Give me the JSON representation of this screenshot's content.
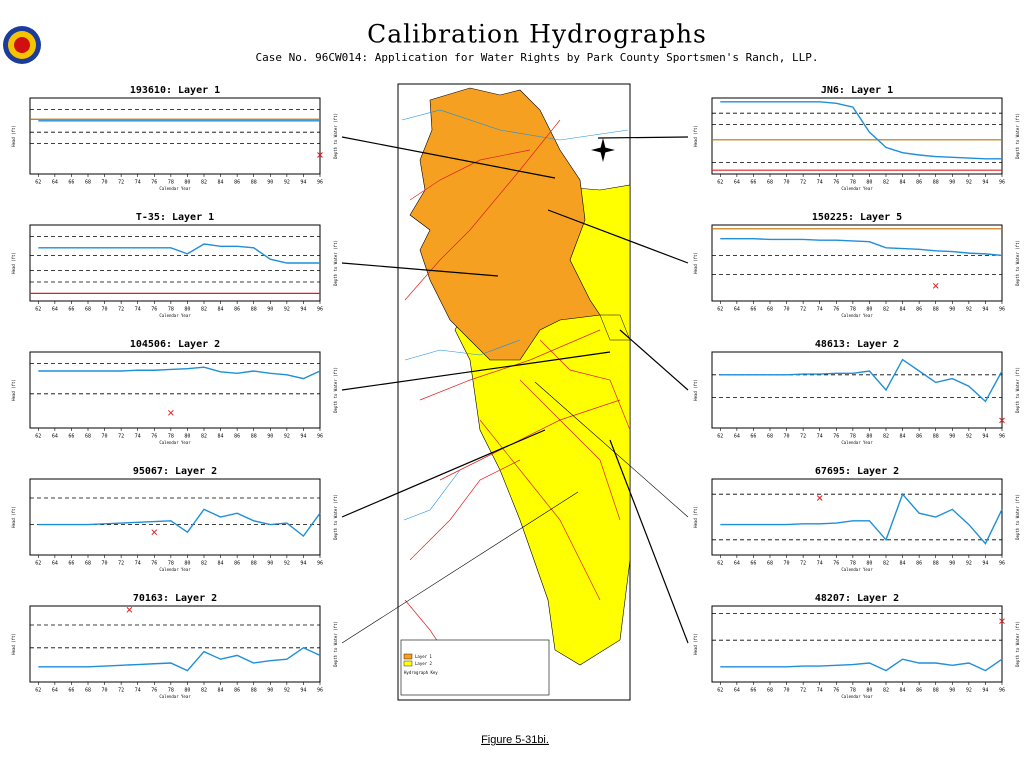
{
  "header": {
    "title": "Calibration Hydrographs",
    "subtitle": "Case No. 96CW014: Application for Water Rights by Park County Sportsmen's Ranch, LLP."
  },
  "figure_caption": "Figure 5-31bi.",
  "map_legend": {
    "layer1": "Layer 1",
    "layer2": "Layer 2",
    "key": "Hydrograph Key"
  },
  "chart_data": [
    {
      "type": "line",
      "title": "193610: Layer 1",
      "xlabel": "Calendar Year",
      "ylabel": "Head (ft)",
      "y2label": "Depth to Water (ft)",
      "x": [
        62,
        64,
        66,
        68,
        70,
        72,
        74,
        76,
        78,
        80,
        82,
        84,
        86,
        88,
        90,
        92,
        94,
        96
      ],
      "color": "#1f8fd8",
      "values": [
        70,
        70,
        70,
        70,
        70,
        70,
        70,
        70,
        70,
        70,
        70,
        70,
        70,
        70,
        70,
        70,
        70,
        70
      ],
      "measurements": {
        "x": [
          96
        ],
        "y": [
          25
        ],
        "color": "#e02020"
      },
      "ref_lines": [
        85,
        55,
        40
      ],
      "colored_refs": [
        {
          "value": 72,
          "color": "#c07000"
        }
      ],
      "xlim": [
        61,
        96
      ],
      "ylim": [
        0,
        100
      ],
      "xticks": [
        62,
        64,
        66,
        68,
        70,
        72,
        74,
        76,
        78,
        80,
        82,
        84,
        86,
        88,
        90,
        92,
        94,
        96
      ]
    },
    {
      "type": "line",
      "title": "T-35: Layer 1",
      "xlabel": "Calendar Year",
      "ylabel": "Head (ft)",
      "y2label": "Depth to Water (ft)",
      "x": [
        62,
        64,
        66,
        68,
        70,
        72,
        74,
        76,
        78,
        80,
        82,
        84,
        86,
        88,
        90,
        92,
        94,
        96
      ],
      "color": "#1f8fd8",
      "values": [
        70,
        70,
        70,
        70,
        70,
        70,
        70,
        70,
        70,
        62,
        75,
        72,
        72,
        70,
        55,
        50,
        50,
        50
      ],
      "measurements": {
        "x": [],
        "y": [],
        "color": "#e02020"
      },
      "ref_lines": [
        85,
        60,
        40,
        25
      ],
      "colored_refs": [
        {
          "value": 10,
          "color": "#e02020"
        }
      ],
      "xlim": [
        61,
        96
      ],
      "ylim": [
        0,
        100
      ],
      "xticks": [
        62,
        64,
        66,
        68,
        70,
        72,
        74,
        76,
        78,
        80,
        82,
        84,
        86,
        88,
        90,
        92,
        94,
        96
      ]
    },
    {
      "type": "line",
      "title": "104506: Layer 2",
      "xlabel": "Calendar Year",
      "ylabel": "Head (ft)",
      "y2label": "Depth to Water (ft)",
      "x": [
        62,
        64,
        66,
        68,
        70,
        72,
        74,
        76,
        78,
        80,
        82,
        84,
        86,
        88,
        90,
        92,
        94,
        96
      ],
      "color": "#1f8fd8",
      "values": [
        75,
        75,
        75,
        75,
        75,
        75,
        76,
        76,
        77,
        78,
        80,
        74,
        72,
        75,
        72,
        70,
        65,
        75
      ],
      "measurements": {
        "x": [
          78
        ],
        "y": [
          20
        ],
        "color": "#e02020"
      },
      "ref_lines": [
        85,
        45
      ],
      "colored_refs": [],
      "xlim": [
        61,
        96
      ],
      "ylim": [
        0,
        100
      ],
      "xticks": [
        62,
        64,
        66,
        68,
        70,
        72,
        74,
        76,
        78,
        80,
        82,
        84,
        86,
        88,
        90,
        92,
        94,
        96
      ]
    },
    {
      "type": "line",
      "title": "95067: Layer 2",
      "xlabel": "Calendar Year",
      "ylabel": "Head (ft)",
      "y2label": "Depth to Water (ft)",
      "x": [
        62,
        64,
        66,
        68,
        70,
        72,
        74,
        76,
        78,
        80,
        82,
        84,
        86,
        88,
        90,
        92,
        94,
        96
      ],
      "color": "#1f8fd8",
      "values": [
        40,
        40,
        40,
        40,
        41,
        42,
        43,
        44,
        45,
        30,
        60,
        50,
        55,
        45,
        40,
        42,
        25,
        55
      ],
      "measurements": {
        "x": [
          76
        ],
        "y": [
          30
        ],
        "color": "#e02020"
      },
      "ref_lines": [
        75,
        40
      ],
      "colored_refs": [],
      "xlim": [
        61,
        96
      ],
      "ylim": [
        0,
        100
      ],
      "xticks": [
        62,
        64,
        66,
        68,
        70,
        72,
        74,
        76,
        78,
        80,
        82,
        84,
        86,
        88,
        90,
        92,
        94,
        96
      ]
    },
    {
      "type": "line",
      "title": "70163: Layer 2",
      "xlabel": "Calendar Year",
      "ylabel": "Head (ft)",
      "y2label": "Depth to Water (ft)",
      "x": [
        62,
        64,
        66,
        68,
        70,
        72,
        74,
        76,
        78,
        80,
        82,
        84,
        86,
        88,
        90,
        92,
        94,
        96
      ],
      "color": "#1f8fd8",
      "values": [
        20,
        20,
        20,
        20,
        21,
        22,
        23,
        24,
        25,
        15,
        40,
        30,
        35,
        25,
        28,
        30,
        45,
        35
      ],
      "measurements": {
        "x": [
          73
        ],
        "y": [
          95
        ],
        "color": "#e02020"
      },
      "ref_lines": [
        75,
        45
      ],
      "colored_refs": [],
      "xlim": [
        61,
        96
      ],
      "ylim": [
        0,
        100
      ],
      "xticks": [
        62,
        64,
        66,
        68,
        70,
        72,
        74,
        76,
        78,
        80,
        82,
        84,
        86,
        88,
        90,
        92,
        94,
        96
      ]
    },
    {
      "type": "line",
      "title": "JN6: Layer 1",
      "xlabel": "Calendar Year",
      "ylabel": "Head (ft)",
      "y2label": "Depth to Water (ft)",
      "x": [
        62,
        64,
        66,
        68,
        70,
        72,
        74,
        76,
        78,
        80,
        82,
        84,
        86,
        88,
        90,
        92,
        94,
        96
      ],
      "color": "#1f8fd8",
      "values": [
        95,
        95,
        95,
        95,
        95,
        95,
        95,
        93,
        88,
        55,
        35,
        28,
        25,
        23,
        22,
        21,
        20,
        20
      ],
      "measurements": {
        "x": [],
        "y": [],
        "color": "#e02020"
      },
      "ref_lines": [
        80,
        65,
        15
      ],
      "colored_refs": [
        {
          "value": 45,
          "color": "#c07000"
        },
        {
          "value": 5,
          "color": "#e02020"
        }
      ],
      "xlim": [
        61,
        96
      ],
      "ylim": [
        0,
        100
      ],
      "xticks": [
        62,
        64,
        66,
        68,
        70,
        72,
        74,
        76,
        78,
        80,
        82,
        84,
        86,
        88,
        90,
        92,
        94,
        96
      ]
    },
    {
      "type": "line",
      "title": "150225: Layer 5",
      "xlabel": "Calendar Year",
      "ylabel": "Head (ft)",
      "y2label": "Depth to Water (ft)",
      "x": [
        62,
        64,
        66,
        68,
        70,
        72,
        74,
        76,
        78,
        80,
        82,
        84,
        86,
        88,
        90,
        92,
        94,
        96
      ],
      "color": "#1f8fd8",
      "values": [
        82,
        82,
        82,
        81,
        81,
        81,
        80,
        80,
        79,
        78,
        70,
        69,
        68,
        66,
        65,
        63,
        62,
        60
      ],
      "measurements": {
        "x": [
          88
        ],
        "y": [
          20
        ],
        "color": "#e02020"
      },
      "ref_lines": [
        60,
        35
      ],
      "colored_refs": [
        {
          "value": 95,
          "color": "#c07000"
        }
      ],
      "xlim": [
        61,
        96
      ],
      "ylim": [
        0,
        100
      ],
      "xticks": [
        62,
        64,
        66,
        68,
        70,
        72,
        74,
        76,
        78,
        80,
        82,
        84,
        86,
        88,
        90,
        92,
        94,
        96
      ]
    },
    {
      "type": "line",
      "title": "48613: Layer 2",
      "xlabel": "Calendar Year",
      "ylabel": "Head (ft)",
      "y2label": "Depth to Water (ft)",
      "x": [
        62,
        64,
        66,
        68,
        70,
        72,
        74,
        76,
        78,
        80,
        82,
        84,
        86,
        88,
        90,
        92,
        94,
        96
      ],
      "color": "#1f8fd8",
      "values": [
        70,
        70,
        70,
        70,
        70,
        71,
        71,
        72,
        72,
        75,
        50,
        90,
        75,
        60,
        65,
        55,
        35,
        75
      ],
      "measurements": {
        "x": [
          96
        ],
        "y": [
          10
        ],
        "color": "#e02020"
      },
      "ref_lines": [
        70,
        40
      ],
      "colored_refs": [],
      "xlim": [
        61,
        96
      ],
      "ylim": [
        0,
        100
      ],
      "xticks": [
        62,
        64,
        66,
        68,
        70,
        72,
        74,
        76,
        78,
        80,
        82,
        84,
        86,
        88,
        90,
        92,
        94,
        96
      ]
    },
    {
      "type": "line",
      "title": "67695: Layer 2",
      "xlabel": "Calendar Year",
      "ylabel": "Head (ft)",
      "y2label": "Depth to Water (ft)",
      "x": [
        62,
        64,
        66,
        68,
        70,
        72,
        74,
        76,
        78,
        80,
        82,
        84,
        86,
        88,
        90,
        92,
        94,
        96
      ],
      "color": "#1f8fd8",
      "values": [
        40,
        40,
        40,
        40,
        40,
        41,
        41,
        42,
        45,
        45,
        20,
        80,
        55,
        50,
        60,
        40,
        15,
        60
      ],
      "measurements": {
        "x": [
          74
        ],
        "y": [
          75
        ],
        "color": "#e02020"
      },
      "ref_lines": [
        80,
        20
      ],
      "colored_refs": [],
      "xlim": [
        61,
        96
      ],
      "ylim": [
        0,
        100
      ],
      "xticks": [
        62,
        64,
        66,
        68,
        70,
        72,
        74,
        76,
        78,
        80,
        82,
        84,
        86,
        88,
        90,
        92,
        94,
        96
      ]
    },
    {
      "type": "line",
      "title": "48207: Layer 2",
      "xlabel": "Calendar Year",
      "ylabel": "Head (ft)",
      "y2label": "Depth to Water (ft)",
      "x": [
        62,
        64,
        66,
        68,
        70,
        72,
        74,
        76,
        78,
        80,
        82,
        84,
        86,
        88,
        90,
        92,
        94,
        96
      ],
      "color": "#1f8fd8",
      "values": [
        20,
        20,
        20,
        20,
        20,
        21,
        21,
        22,
        23,
        25,
        15,
        30,
        25,
        25,
        22,
        25,
        15,
        30
      ],
      "measurements": {
        "x": [
          96
        ],
        "y": [
          80
        ],
        "color": "#e02020"
      },
      "ref_lines": [
        90,
        55
      ],
      "colored_refs": [],
      "xlim": [
        61,
        96
      ],
      "ylim": [
        0,
        100
      ],
      "xticks": [
        62,
        64,
        66,
        68,
        70,
        72,
        74,
        76,
        78,
        80,
        82,
        84,
        86,
        88,
        90,
        92,
        94,
        96
      ]
    }
  ]
}
